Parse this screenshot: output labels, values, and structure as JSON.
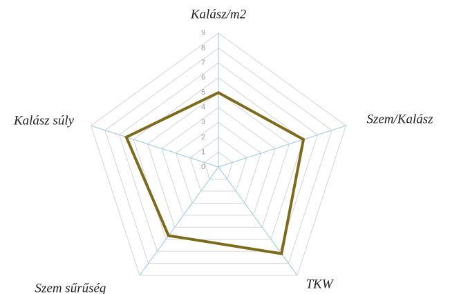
{
  "chart_data": {
    "type": "radar",
    "categories": [
      "Kalász/m2",
      "Szem/Kalász",
      "TKW",
      "Szem sűrűség",
      "Kalász súly"
    ],
    "values": [
      5,
      6,
      7.2,
      5.7,
      6.5
    ],
    "color": "#7d6a1c",
    "ylim": [
      0,
      9
    ],
    "yticks": [
      0,
      1,
      2,
      3,
      4,
      5,
      6,
      7,
      8,
      9
    ],
    "grid": true
  }
}
